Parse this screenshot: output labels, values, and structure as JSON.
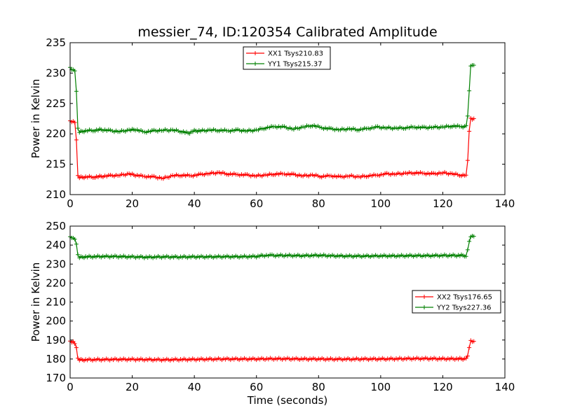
{
  "chart_data": [
    {
      "type": "line",
      "title": "messier_74, ID:120354 Calibrated Amplitude",
      "xlabel": "",
      "ylabel": "Power in Kelvin",
      "xlim": [
        0,
        140
      ],
      "ylim": [
        210,
        235
      ],
      "x_ticks": [
        "0",
        "20",
        "40",
        "60",
        "80",
        "100",
        "120",
        "140"
      ],
      "y_ticks": [
        "210",
        "215",
        "220",
        "225",
        "230",
        "235"
      ],
      "legend_position": "top-center",
      "grid": false,
      "series": [
        {
          "name": "XX1 Tsys210.83",
          "color": "#ff0000",
          "x": [
            0,
            0.5,
            1,
            1.5,
            2,
            2.5,
            3,
            5,
            8,
            10,
            13,
            16,
            19,
            21,
            24,
            27,
            30,
            33,
            36,
            39,
            42,
            45,
            48,
            51,
            54,
            57,
            60,
            63,
            66,
            69,
            72,
            75,
            78,
            81,
            84,
            87,
            90,
            93,
            96,
            99,
            102,
            105,
            108,
            111,
            114,
            117,
            120,
            123,
            126,
            127.5,
            128,
            128.5,
            129,
            129.5,
            130
          ],
          "y": [
            222,
            222,
            222,
            222,
            219,
            213,
            212.8,
            212.9,
            212.9,
            213,
            213.1,
            213.2,
            213.4,
            213.2,
            213,
            212.9,
            212.7,
            213.1,
            213.2,
            213.1,
            213.3,
            213.5,
            213.6,
            213.4,
            213.3,
            213.2,
            213.1,
            213.2,
            213.4,
            213.4,
            213.3,
            213.1,
            213.2,
            213,
            213.1,
            212.9,
            213.1,
            212.9,
            213.1,
            213.2,
            213.4,
            213.4,
            213.5,
            213.6,
            213.5,
            213.4,
            213.6,
            213.4,
            213.2,
            213.2,
            215.5,
            220.5,
            222.5,
            222.5,
            222.5
          ]
        },
        {
          "name": "YY1 Tsys215.37",
          "color": "#008000",
          "x": [
            0,
            0.5,
            1,
            1.5,
            2,
            2.5,
            3,
            5,
            8,
            10,
            13,
            16,
            19,
            21,
            24,
            27,
            30,
            33,
            36,
            38,
            40,
            42,
            45,
            48,
            51,
            54,
            57,
            60,
            63,
            66,
            69,
            72,
            75,
            78,
            81,
            84,
            87,
            90,
            93,
            96,
            99,
            102,
            105,
            108,
            111,
            114,
            117,
            120,
            123,
            126,
            127.5,
            128,
            128.5,
            129,
            129.5,
            130
          ],
          "y": [
            230.8,
            230.6,
            230.5,
            230.5,
            227,
            220.8,
            220.3,
            220.5,
            220.6,
            220.7,
            220.5,
            220.4,
            220.6,
            220.7,
            220.3,
            220.5,
            220.6,
            220.6,
            220.4,
            220.1,
            220.5,
            220.5,
            220.6,
            220.6,
            220.5,
            220.6,
            220.5,
            220.6,
            221,
            221.2,
            221.1,
            220.8,
            221.1,
            221.4,
            221,
            220.8,
            220.7,
            220.8,
            220.7,
            220.9,
            221.1,
            221,
            220.9,
            221,
            221.1,
            221,
            221.1,
            221.1,
            221.3,
            221.2,
            221.2,
            223,
            227,
            231.3,
            231.3,
            231.3
          ]
        }
      ]
    },
    {
      "type": "line",
      "title": "",
      "xlabel": "Time (seconds)",
      "ylabel": "Power in Kelvin",
      "xlim": [
        0,
        140
      ],
      "ylim": [
        170,
        250
      ],
      "x_ticks": [
        "0",
        "20",
        "40",
        "60",
        "80",
        "100",
        "120",
        "140"
      ],
      "y_ticks": [
        "170",
        "180",
        "190",
        "200",
        "210",
        "220",
        "230",
        "240",
        "250"
      ],
      "legend_position": "center-right",
      "grid": false,
      "series": [
        {
          "name": "XX2 Tsys176.65",
          "color": "#ff0000",
          "x": [
            0,
            0.5,
            1,
            1.5,
            2,
            2.5,
            3,
            5,
            10,
            15,
            20,
            25,
            30,
            35,
            40,
            45,
            50,
            55,
            60,
            65,
            70,
            75,
            80,
            85,
            90,
            95,
            100,
            105,
            110,
            115,
            120,
            125,
            127.5,
            128,
            128.5,
            129,
            129.5,
            130
          ],
          "y": [
            189,
            189,
            189,
            188.5,
            186,
            180,
            179.5,
            179.6,
            179.7,
            179.8,
            179.8,
            179.7,
            179.6,
            179.7,
            179.8,
            179.9,
            180,
            180,
            180,
            180.1,
            180.1,
            180,
            180,
            179.9,
            179.9,
            180,
            180,
            180.1,
            180.2,
            180.2,
            180.1,
            180.1,
            180.1,
            182,
            186,
            189.3,
            189.3,
            189.3
          ]
        },
        {
          "name": "YY2 Tsys227.36",
          "color": "#008000",
          "x": [
            0,
            0.5,
            1,
            1.5,
            2,
            2.5,
            3,
            5,
            10,
            15,
            20,
            25,
            30,
            35,
            40,
            45,
            50,
            55,
            60,
            62,
            65,
            70,
            75,
            80,
            85,
            90,
            95,
            100,
            105,
            110,
            115,
            120,
            125,
            127.5,
            128,
            128.5,
            129,
            129.5,
            130
          ],
          "y": [
            244,
            244,
            243.5,
            243.5,
            240.5,
            234.5,
            233.5,
            233.8,
            234,
            234,
            233.8,
            233.6,
            233.8,
            233.7,
            233.8,
            233.8,
            233.9,
            233.9,
            234,
            234.5,
            234.5,
            234.5,
            234.4,
            234.6,
            234.3,
            234.2,
            234.2,
            234.3,
            234.3,
            234.4,
            234.4,
            234.5,
            234.5,
            234.5,
            237.5,
            241.5,
            244.6,
            244.6,
            244.6
          ]
        }
      ]
    }
  ]
}
